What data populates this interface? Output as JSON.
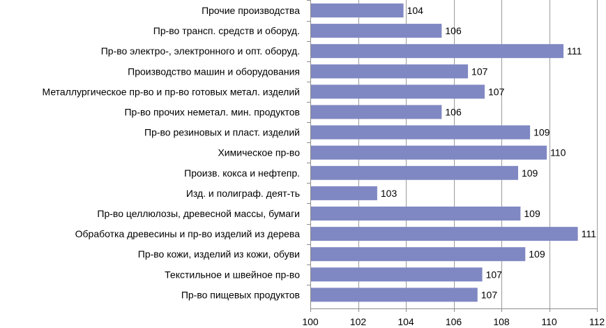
{
  "chart_data": {
    "type": "bar",
    "orientation": "horizontal",
    "title": "",
    "xlabel": "",
    "ylabel": "",
    "xlim": [
      100,
      112
    ],
    "x_ticks": [
      100,
      102,
      104,
      106,
      108,
      110,
      112
    ],
    "grid": true,
    "legend": "none",
    "bar_color": "#8088c3",
    "categories": [
      "Прочие производства",
      "Пр-во трансп. средств и оборуд.",
      "Пр-во электро-, электронного и опт. оборуд.",
      "Производство машин и оборудования",
      "Металлургическое пр-во и пр-во готовых метал. изделий",
      "Пр-во прочих неметал. мин. продуктов",
      "Пр-во резиновых и пласт. изделий",
      "Химическое пр-во",
      "Произв. кокса и нефтепр.",
      "Изд. и полиграф. деят-ть",
      "Пр-во целлюлозы, древесной массы, бумаги",
      "Обработка древесины и пр-во изделий из дерева",
      "Пр-во кожи, изделий из кожи, обуви",
      "Текстильное и швейное пр-во",
      "Пр-во пищевых продуктов"
    ],
    "values": [
      103.9,
      105.5,
      110.6,
      106.6,
      107.3,
      105.5,
      109.2,
      109.9,
      108.7,
      102.8,
      108.8,
      111.2,
      109.0,
      107.2,
      107.0
    ],
    "data_labels": [
      "104",
      "106",
      "111",
      "107",
      "107",
      "106",
      "109",
      "110",
      "109",
      "103",
      "109",
      "111",
      "109",
      "107",
      "107"
    ]
  }
}
